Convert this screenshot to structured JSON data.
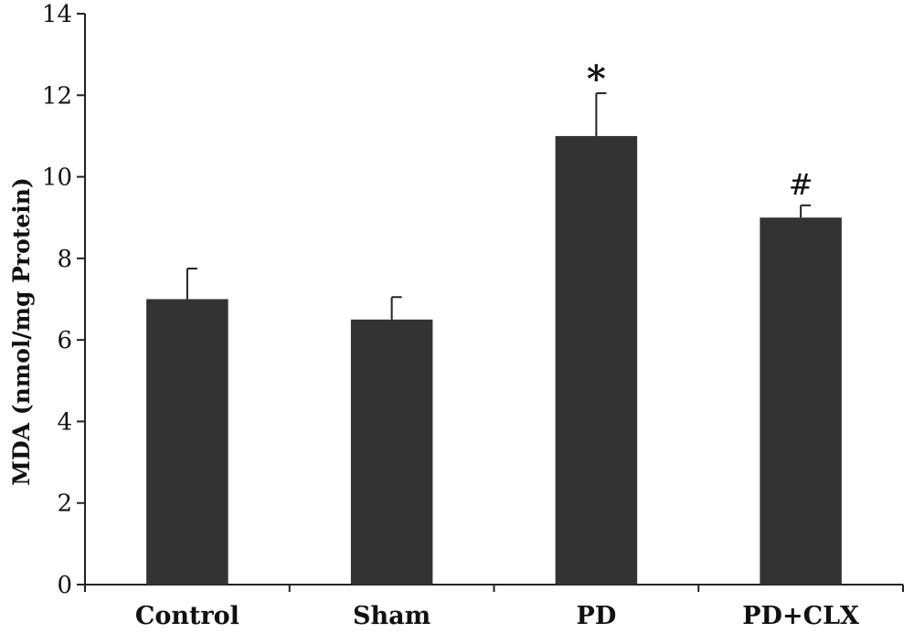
{
  "chart_data": {
    "type": "bar",
    "title": "",
    "xlabel": "",
    "ylabel": "MDA (nmol/mg Protein)",
    "ylim": [
      0,
      14
    ],
    "yticks": [
      0,
      2,
      4,
      6,
      8,
      10,
      12,
      14
    ],
    "grid": false,
    "legend": "none",
    "categories": [
      "Control",
      "Sham",
      "PD",
      "PD+CLX"
    ],
    "series": [
      {
        "values": [
          7.0,
          6.5,
          11.0,
          9.0
        ],
        "errors": [
          0.75,
          0.55,
          1.05,
          0.3
        ],
        "color": "#333333"
      }
    ],
    "annotations": [
      "",
      "",
      "*",
      "#"
    ]
  }
}
